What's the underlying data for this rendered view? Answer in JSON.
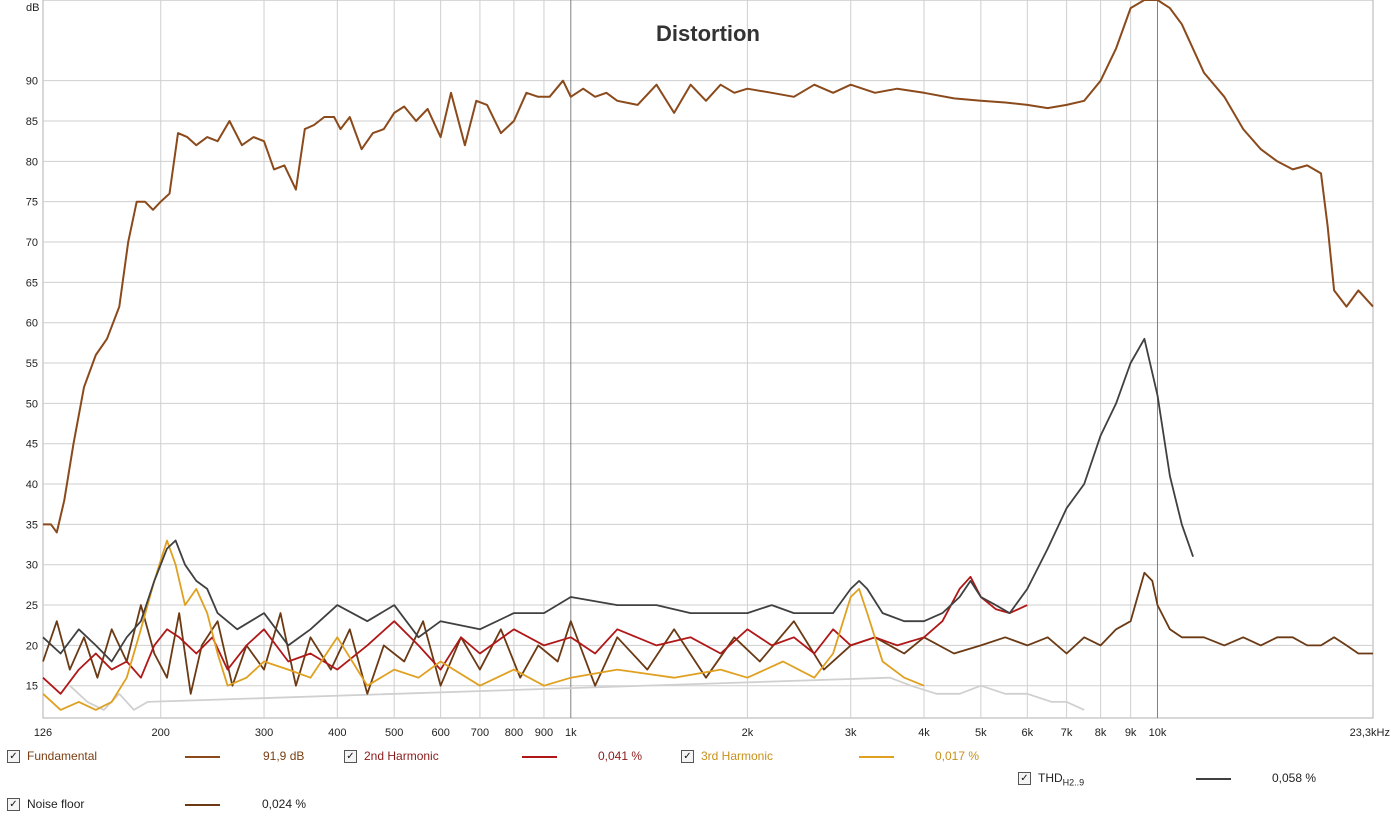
{
  "chart_data": {
    "type": "line",
    "title": "Distortion",
    "ylabel": "dB",
    "xscale": "log",
    "xlim": [
      126,
      23300
    ],
    "ylim": [
      11,
      100
    ],
    "grid": true,
    "x_ticks": [
      {
        "v": 126,
        "label": "126"
      },
      {
        "v": 200,
        "label": "200"
      },
      {
        "v": 300,
        "label": "300"
      },
      {
        "v": 400,
        "label": "400"
      },
      {
        "v": 500,
        "label": "500"
      },
      {
        "v": 600,
        "label": "600"
      },
      {
        "v": 700,
        "label": "700"
      },
      {
        "v": 800,
        "label": "800"
      },
      {
        "v": 900,
        "label": "900"
      },
      {
        "v": 1000,
        "label": "1k"
      },
      {
        "v": 2000,
        "label": "2k"
      },
      {
        "v": 3000,
        "label": "3k"
      },
      {
        "v": 4000,
        "label": "4k"
      },
      {
        "v": 5000,
        "label": "5k"
      },
      {
        "v": 6000,
        "label": "6k"
      },
      {
        "v": 7000,
        "label": "7k"
      },
      {
        "v": 8000,
        "label": "8k"
      },
      {
        "v": 9000,
        "label": "9k"
      },
      {
        "v": 10000,
        "label": "10k"
      },
      {
        "v": 23300,
        "label": "23,3kHz"
      }
    ],
    "y_ticks": [
      15,
      20,
      25,
      30,
      35,
      40,
      45,
      50,
      55,
      60,
      65,
      70,
      75,
      80,
      85,
      90
    ],
    "series": [
      {
        "name": "Fundamental",
        "color": "#8b4a1c",
        "x": [
          126,
          130,
          133,
          137,
          142,
          148,
          155,
          162,
          170,
          176,
          182,
          188,
          194,
          200,
          207,
          214,
          222,
          230,
          240,
          250,
          262,
          275,
          288,
          300,
          312,
          325,
          340,
          352,
          365,
          380,
          395,
          405,
          420,
          440,
          460,
          480,
          500,
          520,
          545,
          570,
          600,
          625,
          660,
          690,
          720,
          760,
          800,
          840,
          880,
          920,
          970,
          1000,
          1050,
          1100,
          1150,
          1200,
          1300,
          1400,
          1500,
          1600,
          1700,
          1800,
          1900,
          2000,
          2200,
          2400,
          2600,
          2800,
          3000,
          3300,
          3600,
          4000,
          4500,
          5000,
          5500,
          6000,
          6500,
          7000,
          7500,
          8000,
          8500,
          9000,
          9500,
          10000,
          10500,
          11000,
          12000,
          13000,
          14000,
          15000,
          16000,
          17000,
          18000,
          19000,
          19500,
          20000,
          21000,
          22000,
          23300
        ],
        "y": [
          35,
          35,
          34,
          38,
          45,
          52,
          56,
          58,
          62,
          70,
          75,
          75,
          74,
          75,
          76,
          83.5,
          83,
          82,
          83,
          82.5,
          85,
          82,
          83,
          82.5,
          79,
          79.5,
          76.5,
          84,
          84.5,
          85.5,
          85.5,
          84,
          85.5,
          81.5,
          83.5,
          84,
          86,
          86.8,
          85,
          86.5,
          83,
          88.5,
          82,
          87.5,
          87,
          83.5,
          85,
          88.5,
          88,
          88,
          90,
          88,
          89,
          88,
          88.5,
          87.5,
          87,
          89.5,
          86,
          89.5,
          87.5,
          89.5,
          88.5,
          89,
          88.5,
          88,
          89.5,
          88.5,
          89.5,
          88.5,
          89,
          88.5,
          87.8,
          87.5,
          87.3,
          87,
          86.6,
          87,
          87.5,
          90,
          94,
          99,
          102,
          101,
          99,
          97,
          91,
          88,
          84,
          81.5,
          80,
          79,
          79.5,
          78.5,
          72,
          64,
          62,
          64,
          62
        ]
      },
      {
        "name": "2nd Harmonic",
        "color": "#b01818",
        "x": [
          126,
          135,
          145,
          155,
          165,
          175,
          185,
          195,
          205,
          215,
          230,
          245,
          260,
          280,
          300,
          330,
          360,
          400,
          450,
          500,
          550,
          600,
          650,
          700,
          800,
          900,
          1000,
          1100,
          1200,
          1400,
          1600,
          1800,
          2000,
          2200,
          2400,
          2600,
          2800,
          3000,
          3300,
          3600,
          4000,
          4300,
          4600,
          4800,
          5000,
          5300,
          5600,
          6000
        ],
        "y": [
          16,
          14,
          17,
          19,
          17,
          18,
          16,
          20,
          22,
          21,
          19,
          21,
          17,
          20,
          22,
          18,
          19,
          17,
          20,
          23,
          20,
          17,
          21,
          19,
          22,
          20,
          21,
          19,
          22,
          20,
          21,
          19,
          22,
          20,
          21,
          19,
          22,
          20,
          21,
          20,
          21,
          23,
          27,
          28.5,
          26,
          24.5,
          24,
          25
        ]
      },
      {
        "name": "3rd Harmonic",
        "color": "#e0a020",
        "x": [
          126,
          135,
          145,
          155,
          165,
          175,
          185,
          195,
          205,
          212,
          220,
          230,
          240,
          250,
          260,
          280,
          300,
          330,
          360,
          400,
          450,
          500,
          550,
          600,
          700,
          800,
          900,
          1000,
          1200,
          1500,
          1800,
          2000,
          2300,
          2600,
          2800,
          3000,
          3100,
          3200,
          3400,
          3700,
          4000
        ],
        "y": [
          14,
          12,
          13,
          12,
          13,
          16,
          22,
          28,
          33,
          30,
          25,
          27,
          24,
          19,
          15,
          16,
          18,
          17,
          16,
          21,
          15,
          17,
          16,
          18,
          15,
          17,
          15,
          16,
          17,
          16,
          17,
          16,
          18,
          16,
          19,
          26,
          27,
          24,
          18,
          16,
          15
        ]
      },
      {
        "name": "THD H2..9",
        "color": "#404040",
        "x": [
          126,
          135,
          145,
          155,
          165,
          175,
          185,
          195,
          205,
          212,
          220,
          230,
          240,
          250,
          270,
          300,
          330,
          360,
          400,
          450,
          500,
          550,
          600,
          700,
          800,
          900,
          1000,
          1200,
          1400,
          1600,
          1800,
          2000,
          2200,
          2400,
          2600,
          2800,
          3000,
          3100,
          3200,
          3400,
          3700,
          4000,
          4300,
          4600,
          4800,
          5000,
          5300,
          5600,
          6000,
          6500,
          7000,
          7500,
          8000,
          8500,
          9000,
          9500,
          10000,
          10500,
          11000,
          11500
        ],
        "y": [
          21,
          19,
          22,
          20,
          18,
          21,
          23,
          28,
          32,
          33,
          30,
          28,
          27,
          24,
          22,
          24,
          20,
          22,
          25,
          23,
          25,
          21,
          23,
          22,
          24,
          24,
          26,
          25,
          25,
          24,
          24,
          24,
          25,
          24,
          24,
          24,
          27,
          28,
          27,
          24,
          23,
          23,
          24,
          26,
          28,
          26,
          25,
          24,
          27,
          32,
          37,
          40,
          46,
          50,
          55,
          58,
          51,
          41,
          35,
          31
        ]
      },
      {
        "name": "Noise floor",
        "color": "#6b3a14",
        "x": [
          126,
          133,
          140,
          148,
          156,
          165,
          175,
          185,
          195,
          205,
          215,
          225,
          235,
          250,
          265,
          280,
          300,
          320,
          340,
          360,
          390,
          420,
          450,
          480,
          520,
          560,
          600,
          650,
          700,
          760,
          820,
          880,
          950,
          1000,
          1100,
          1200,
          1350,
          1500,
          1700,
          1900,
          2100,
          2400,
          2700,
          3000,
          3300,
          3700,
          4000,
          4500,
          5000,
          5500,
          6000,
          6500,
          7000,
          7500,
          8000,
          8500,
          9000,
          9500,
          9800,
          10000,
          10500,
          11000,
          12000,
          13000,
          14000,
          15000,
          16000,
          17000,
          18000,
          19000,
          20000,
          21000,
          22000,
          23300
        ],
        "y": [
          18,
          23,
          17,
          21,
          16,
          22,
          18,
          25,
          19,
          16,
          24,
          14,
          20,
          23,
          15,
          20,
          17,
          24,
          15,
          21,
          17,
          22,
          14,
          20,
          18,
          23,
          15,
          21,
          17,
          22,
          16,
          20,
          18,
          23,
          15,
          21,
          17,
          22,
          16,
          21,
          18,
          23,
          17,
          20,
          21,
          19,
          21,
          19,
          20,
          21,
          20,
          21,
          19,
          21,
          20,
          22,
          23,
          29,
          28,
          25,
          22,
          21,
          21,
          20,
          21,
          20,
          21,
          21,
          20,
          20,
          21,
          20,
          19,
          19
        ]
      },
      {
        "name": "Noise faint",
        "color": "#d0d0d0",
        "x": [
          140,
          150,
          160,
          170,
          180,
          190,
          3500,
          3800,
          4200,
          4600,
          5000,
          5500,
          6000,
          6600,
          7000,
          7500
        ],
        "y": [
          15,
          13,
          12,
          14,
          12,
          13,
          16,
          15,
          14,
          14,
          15,
          14,
          14,
          13,
          13,
          12
        ]
      }
    ],
    "legend": [
      {
        "name": "Fundamental",
        "value": "91,9 dB",
        "color": "#8b4a1c",
        "checked": true
      },
      {
        "name": "2nd Harmonic",
        "value": "0,041 %",
        "color": "#b01818",
        "checked": true
      },
      {
        "name": "3rd Harmonic",
        "value": "0,017 %",
        "color": "#e0a020",
        "checked": true
      },
      {
        "name": "THD",
        "sub": "H2..9",
        "value": "0,058 %",
        "color": "#404040",
        "checked": true
      },
      {
        "name": "Noise floor",
        "value": "0,024 %",
        "color": "#6b3a14",
        "checked": true
      }
    ]
  }
}
